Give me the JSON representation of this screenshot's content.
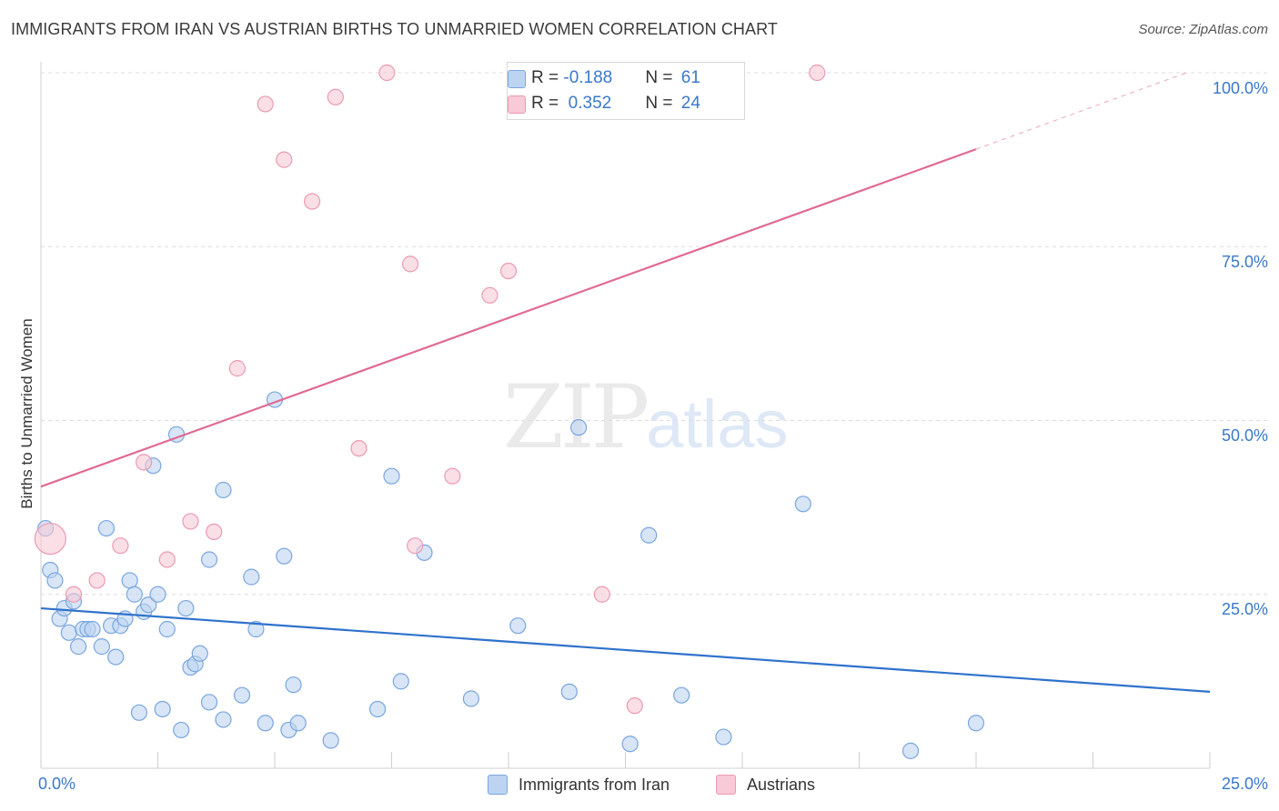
{
  "title": "IMMIGRANTS FROM IRAN VS AUSTRIAN BIRTHS TO UNMARRIED WOMEN CORRELATION CHART",
  "source": "Source: ZipAtlas.com",
  "watermark": {
    "zip": "ZIP",
    "atlas": "atlas"
  },
  "legend_top": {
    "rows": [
      {
        "r_label": "R = ",
        "r_value": "-0.188",
        "n_label": "N = ",
        "n_value": "61"
      },
      {
        "r_label": "R = ",
        "r_value": " 0.352",
        "n_label": "N = ",
        "n_value": "24"
      }
    ]
  },
  "legend_bottom": [
    "Immigrants from Iran",
    "Austrians"
  ],
  "colors": {
    "blue_fill": "#bcd4f2",
    "blue_stroke": "#7aa6de",
    "blue_line": "#2f72cc",
    "pink_fill": "#f8c9d6",
    "pink_stroke": "#ea9ab2",
    "pink_line": "#e06a93",
    "tick_text": "#3a78c9"
  },
  "chart_data": {
    "type": "scatter",
    "title": "IMMIGRANTS FROM IRAN VS AUSTRIAN BIRTHS TO UNMARRIED WOMEN CORRELATION CHART",
    "xlabel": "",
    "ylabel": "Births to Unmarried Women",
    "xlim": [
      0,
      25
    ],
    "ylim": [
      0,
      100
    ],
    "x_tick_labels": [
      "0.0%",
      "25.0%"
    ],
    "y_tick_labels": [
      "25.0%",
      "50.0%",
      "75.0%",
      "100.0%"
    ],
    "y_ticks": [
      25,
      50,
      75,
      100
    ],
    "grid": true,
    "legend_position": "top-center",
    "series": [
      {
        "name": "Immigrants from Iran",
        "R": -0.188,
        "N": 61,
        "trend": {
          "x0": 0,
          "y0": 23.0,
          "x1": 25,
          "y1": 11.0
        },
        "points": [
          [
            0.1,
            34.5
          ],
          [
            0.2,
            28.5
          ],
          [
            0.3,
            27.0
          ],
          [
            0.4,
            21.5
          ],
          [
            0.5,
            23.0
          ],
          [
            0.6,
            19.5
          ],
          [
            0.7,
            24.0
          ],
          [
            0.8,
            17.5
          ],
          [
            0.9,
            20.0
          ],
          [
            1.0,
            20.0
          ],
          [
            1.1,
            20.0
          ],
          [
            1.3,
            17.5
          ],
          [
            1.4,
            34.5
          ],
          [
            1.5,
            20.5
          ],
          [
            1.6,
            16.0
          ],
          [
            1.7,
            20.5
          ],
          [
            1.8,
            21.5
          ],
          [
            1.9,
            27.0
          ],
          [
            2.0,
            25.0
          ],
          [
            2.1,
            8.0
          ],
          [
            2.2,
            22.5
          ],
          [
            2.3,
            23.5
          ],
          [
            2.4,
            43.5
          ],
          [
            2.5,
            25.0
          ],
          [
            2.6,
            8.5
          ],
          [
            2.7,
            20.0
          ],
          [
            2.9,
            48.0
          ],
          [
            3.0,
            5.5
          ],
          [
            3.1,
            23.0
          ],
          [
            3.2,
            14.5
          ],
          [
            3.3,
            15.0
          ],
          [
            3.4,
            16.5
          ],
          [
            3.6,
            9.5
          ],
          [
            3.6,
            30.0
          ],
          [
            3.9,
            7.0
          ],
          [
            3.9,
            40.0
          ],
          [
            4.3,
            10.5
          ],
          [
            4.5,
            27.5
          ],
          [
            4.6,
            20.0
          ],
          [
            4.8,
            6.5
          ],
          [
            5.0,
            53.0
          ],
          [
            5.2,
            30.5
          ],
          [
            5.3,
            5.5
          ],
          [
            5.4,
            12.0
          ],
          [
            5.5,
            6.5
          ],
          [
            6.2,
            4.0
          ],
          [
            7.2,
            8.5
          ],
          [
            7.5,
            42.0
          ],
          [
            7.7,
            12.5
          ],
          [
            8.2,
            31.0
          ],
          [
            9.2,
            10.0
          ],
          [
            10.2,
            20.5
          ],
          [
            11.3,
            11.0
          ],
          [
            11.5,
            49.0
          ],
          [
            12.6,
            3.5
          ],
          [
            13.0,
            33.5
          ],
          [
            13.7,
            10.5
          ],
          [
            14.6,
            4.5
          ],
          [
            16.3,
            38.0
          ],
          [
            18.6,
            2.5
          ],
          [
            20.0,
            6.5
          ]
        ]
      },
      {
        "name": "Austrians",
        "R": 0.352,
        "N": 24,
        "trend": {
          "x0": 0,
          "y0": 40.5,
          "x1": 20,
          "y1": 89.0,
          "dashed_to": {
            "x": 24.5,
            "y": 100
          }
        },
        "points": [
          [
            0.2,
            33.0
          ],
          [
            0.7,
            25.0
          ],
          [
            1.2,
            27.0
          ],
          [
            1.7,
            32.0
          ],
          [
            2.2,
            44.0
          ],
          [
            2.7,
            30.0
          ],
          [
            3.2,
            35.5
          ],
          [
            3.7,
            34.0
          ],
          [
            4.2,
            57.5
          ],
          [
            4.8,
            95.5
          ],
          [
            5.2,
            87.5
          ],
          [
            5.8,
            81.5
          ],
          [
            6.3,
            96.5
          ],
          [
            6.8,
            46.0
          ],
          [
            7.4,
            100.0
          ],
          [
            7.9,
            72.5
          ],
          [
            8.0,
            32.0
          ],
          [
            8.8,
            42.0
          ],
          [
            9.6,
            68.0
          ],
          [
            10.0,
            71.5
          ],
          [
            11.6,
            100.0
          ],
          [
            12.0,
            25.0
          ],
          [
            12.7,
            9.0
          ],
          [
            16.6,
            100.0
          ]
        ]
      }
    ]
  }
}
